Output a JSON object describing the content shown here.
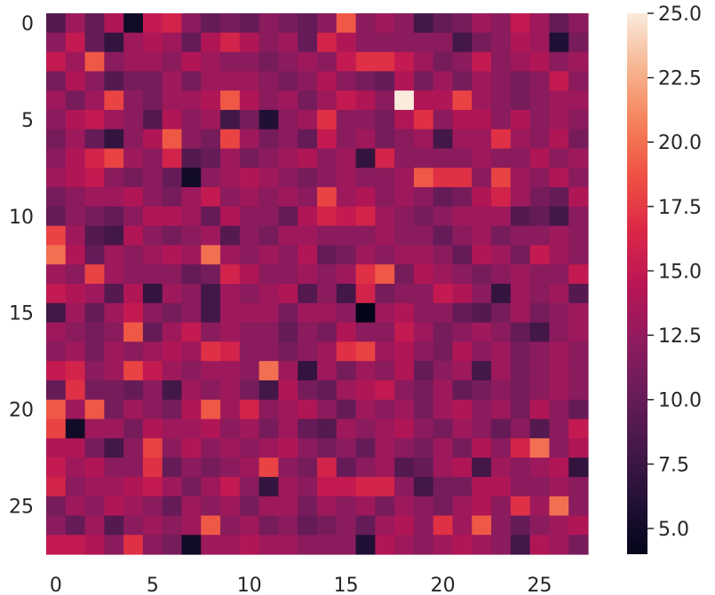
{
  "chart_data": {
    "type": "heatmap",
    "title": "",
    "xlabel": "",
    "ylabel": "",
    "x_tick_labels": [
      "0",
      "5",
      "10",
      "15",
      "20",
      "25"
    ],
    "y_tick_labels": [
      "0",
      "5",
      "10",
      "15",
      "20",
      "25"
    ],
    "x_tick_values": [
      0,
      5,
      10,
      15,
      20,
      25
    ],
    "y_tick_values": [
      0,
      5,
      10,
      15,
      20,
      25
    ],
    "colorbar": {
      "min": 4,
      "max": 25,
      "ticks": [
        5.0,
        7.5,
        10.0,
        12.5,
        15.0,
        17.5,
        20.0,
        22.5,
        25.0
      ],
      "tick_labels": [
        "5.0",
        "7.5",
        "10.0",
        "12.5",
        "15.0",
        "17.5",
        "20.0",
        "22.5",
        "25.0"
      ],
      "colormap": "rocket"
    },
    "grid": false,
    "values": [
      [
        9,
        13,
        10,
        14,
        5,
        15,
        16,
        12,
        10,
        11,
        10,
        12,
        11,
        10,
        12,
        19,
        12,
        13,
        12,
        8,
        10,
        11,
        13,
        12,
        15,
        13,
        10,
        12
      ],
      [
        12,
        15,
        10,
        7,
        13,
        14,
        13,
        10,
        14,
        16,
        14,
        12,
        13,
        10,
        16,
        14,
        12,
        12,
        12,
        12,
        12,
        8,
        11,
        12,
        14,
        13,
        6,
        11
      ],
      [
        15,
        13,
        19,
        12,
        13,
        13,
        12,
        14,
        13,
        12,
        12,
        11,
        12,
        13,
        12,
        15,
        17,
        17,
        15,
        13,
        11,
        12,
        15,
        12,
        13,
        14,
        12,
        13
      ],
      [
        11,
        14,
        12,
        9,
        11,
        11,
        13,
        11,
        13,
        13,
        13,
        12,
        11,
        12,
        14,
        12,
        11,
        10,
        14,
        11,
        13,
        11,
        13,
        12,
        11,
        12,
        15,
        12
      ],
      [
        13,
        11,
        13,
        18,
        12,
        11,
        13,
        13,
        14,
        19,
        14,
        12,
        13,
        11,
        13,
        15,
        14,
        12,
        25,
        14,
        14,
        18,
        13,
        12,
        11,
        12,
        13,
        13
      ],
      [
        12,
        14,
        15,
        13,
        12,
        9,
        14,
        12,
        13,
        8,
        11,
        6,
        12,
        13,
        17,
        12,
        12,
        11,
        14,
        17,
        12,
        14,
        14,
        12,
        14,
        12,
        13,
        12
      ],
      [
        11,
        13,
        10,
        7,
        12,
        14,
        19,
        12,
        11,
        18,
        13,
        11,
        12,
        10,
        15,
        12,
        13,
        11,
        12,
        13,
        8,
        13,
        13,
        17,
        13,
        12,
        14,
        11
      ],
      [
        12,
        14,
        16,
        18,
        13,
        12,
        16,
        9,
        10,
        13,
        11,
        12,
        13,
        14,
        12,
        13,
        7,
        16,
        12,
        12,
        12,
        12,
        13,
        12,
        12,
        14,
        12,
        13
      ],
      [
        13,
        14,
        15,
        12,
        11,
        12,
        10,
        5,
        12,
        13,
        14,
        13,
        12,
        11,
        12,
        13,
        12,
        12,
        13,
        19,
        17,
        17,
        12,
        18,
        13,
        12,
        14,
        12
      ],
      [
        11,
        12,
        13,
        13,
        14,
        12,
        11,
        13,
        15,
        12,
        13,
        12,
        13,
        12,
        18,
        13,
        14,
        12,
        13,
        12,
        10,
        11,
        14,
        16,
        13,
        11,
        10,
        14
      ],
      [
        10,
        12,
        11,
        10,
        12,
        14,
        14,
        13,
        10,
        14,
        12,
        12,
        10,
        14,
        16,
        15,
        16,
        13,
        12,
        11,
        12,
        13,
        13,
        13,
        9,
        10,
        8,
        12
      ],
      [
        18,
        13,
        9,
        8,
        14,
        12,
        11,
        12,
        13,
        9,
        12,
        11,
        13,
        13,
        12,
        12,
        12,
        13,
        12,
        12,
        10,
        12,
        13,
        11,
        12,
        12,
        13,
        12
      ],
      [
        20,
        14,
        10,
        13,
        12,
        13,
        14,
        13,
        20,
        13,
        12,
        13,
        12,
        14,
        10,
        11,
        13,
        12,
        13,
        13,
        12,
        10,
        14,
        13,
        11,
        15,
        13,
        12
      ],
      [
        13,
        12,
        18,
        13,
        12,
        12,
        12,
        10,
        11,
        16,
        14,
        12,
        12,
        13,
        12,
        13,
        17,
        19,
        11,
        14,
        13,
        12,
        11,
        12,
        13,
        12,
        12,
        15
      ],
      [
        15,
        14,
        13,
        9,
        14,
        7,
        13,
        12,
        8,
        13,
        12,
        13,
        14,
        9,
        12,
        8,
        16,
        11,
        12,
        12,
        15,
        14,
        12,
        7,
        13,
        12,
        13,
        9
      ],
      [
        8,
        13,
        10,
        13,
        15,
        12,
        11,
        12,
        8,
        13,
        13,
        13,
        11,
        13,
        13,
        12,
        4,
        13,
        14,
        12,
        12,
        10,
        9,
        11,
        13,
        11,
        12,
        13
      ],
      [
        13,
        12,
        11,
        12,
        19,
        10,
        13,
        15,
        12,
        13,
        12,
        12,
        10,
        12,
        11,
        14,
        12,
        12,
        15,
        13,
        11,
        12,
        13,
        12,
        10,
        8,
        12,
        13
      ],
      [
        12,
        13,
        11,
        13,
        12,
        13,
        14,
        13,
        17,
        16,
        12,
        12,
        11,
        12,
        13,
        17,
        18,
        13,
        14,
        12,
        11,
        14,
        12,
        13,
        11,
        12,
        13,
        12
      ],
      [
        15,
        16,
        12,
        13,
        18,
        15,
        13,
        12,
        13,
        13,
        12,
        20,
        13,
        7,
        13,
        11,
        13,
        12,
        14,
        10,
        12,
        13,
        8,
        13,
        11,
        12,
        13,
        12
      ],
      [
        10,
        17,
        11,
        11,
        10,
        12,
        8,
        13,
        12,
        13,
        11,
        8,
        14,
        11,
        10,
        13,
        14,
        15,
        12,
        11,
        13,
        10,
        11,
        12,
        11,
        12,
        13,
        12
      ],
      [
        19,
        13,
        19,
        11,
        13,
        12,
        11,
        14,
        19,
        13,
        16,
        12,
        13,
        14,
        12,
        10,
        13,
        12,
        13,
        11,
        13,
        14,
        12,
        13,
        11,
        14,
        12,
        10
      ],
      [
        18,
        5,
        13,
        13,
        11,
        14,
        13,
        13,
        14,
        12,
        13,
        11,
        13,
        10,
        9,
        13,
        12,
        13,
        14,
        12,
        11,
        13,
        12,
        10,
        12,
        9,
        12,
        15
      ],
      [
        14,
        14,
        11,
        8,
        12,
        18,
        12,
        14,
        12,
        13,
        12,
        13,
        14,
        12,
        11,
        12,
        10,
        13,
        12,
        11,
        13,
        11,
        14,
        12,
        16,
        20,
        12,
        14
      ],
      [
        15,
        13,
        14,
        12,
        12,
        17,
        10,
        12,
        11,
        12,
        13,
        18,
        12,
        11,
        16,
        10,
        12,
        13,
        9,
        10,
        13,
        14,
        8,
        13,
        12,
        13,
        14,
        7
      ],
      [
        16,
        12,
        13,
        13,
        14,
        15,
        13,
        11,
        13,
        15,
        12,
        7,
        13,
        12,
        15,
        15,
        16,
        16,
        12,
        8,
        11,
        11,
        14,
        14,
        12,
        12,
        13,
        12
      ],
      [
        11,
        13,
        12,
        14,
        13,
        12,
        10,
        13,
        12,
        13,
        11,
        13,
        13,
        11,
        13,
        12,
        13,
        11,
        13,
        12,
        11,
        13,
        14,
        12,
        17,
        13,
        20,
        12
      ],
      [
        12,
        10,
        13,
        9,
        12,
        13,
        12,
        13,
        19,
        12,
        13,
        11,
        12,
        10,
        11,
        12,
        10,
        13,
        14,
        12,
        17,
        13,
        19,
        12,
        10,
        12,
        13,
        14
      ],
      [
        15,
        15,
        14,
        12,
        17,
        12,
        11,
        5,
        13,
        13,
        14,
        13,
        13,
        12,
        12,
        12,
        6,
        14,
        13,
        12,
        13,
        14,
        13,
        12,
        8,
        14,
        13,
        11
      ]
    ]
  }
}
